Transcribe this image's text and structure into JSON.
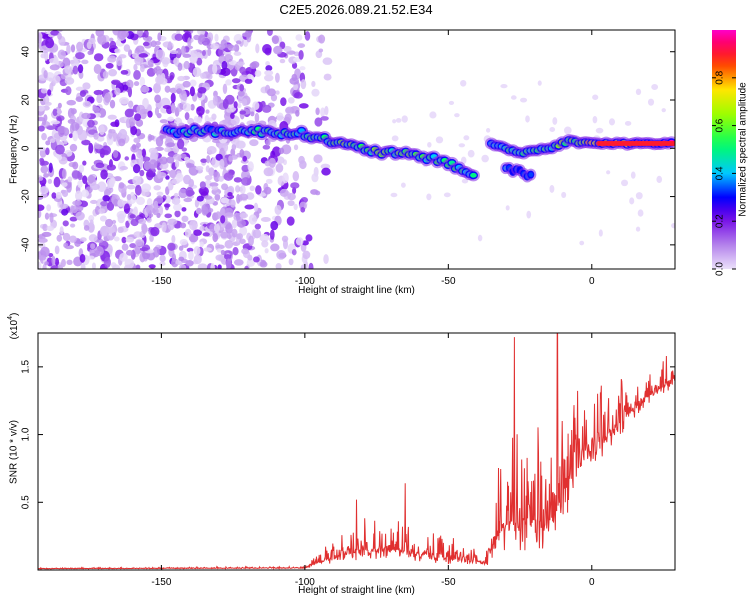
{
  "title": "C2E5.2026.089.21.52.E34",
  "chart_data": [
    {
      "type": "heatmap",
      "name": "spectrogram",
      "xlabel": "Height of straight line (km)",
      "ylabel": "Frequency (Hz)",
      "xlim": [
        -193,
        29
      ],
      "ylim": [
        -50,
        49
      ],
      "xticks": [
        -150,
        -100,
        -50,
        0
      ],
      "yticks": [
        -40,
        -20,
        0,
        20,
        40
      ],
      "colorbar": {
        "label": "Normalized spectral amplitude",
        "range": [
          0,
          1
        ],
        "ticks": [
          0.0,
          0.2,
          0.4,
          0.6,
          0.8
        ],
        "tick_labels": [
          "0.0",
          "0.2",
          "0.4",
          "0.6",
          "0.8"
        ]
      },
      "features": {
        "noise_region": {
          "x_range": [
            -193,
            -100
          ],
          "amplitude": [
            0.0,
            0.15
          ]
        },
        "main_track": [
          {
            "x": -148,
            "y": 7,
            "v": 0.45
          },
          {
            "x": -130,
            "y": 7,
            "v": 0.4
          },
          {
            "x": -115,
            "y": 7,
            "v": 0.5
          },
          {
            "x": -100,
            "y": 6,
            "v": 0.45
          },
          {
            "x": -85,
            "y": 1,
            "v": 0.55
          },
          {
            "x": -72,
            "y": -2,
            "v": 0.55
          },
          {
            "x": -60,
            "y": -3,
            "v": 0.5
          },
          {
            "x": -50,
            "y": -6,
            "v": 0.5
          },
          {
            "x": -40,
            "y": -12,
            "v": 0.45
          }
        ],
        "secondary_track": [
          {
            "x": -35,
            "y": 2,
            "v": 0.45
          },
          {
            "x": -25,
            "y": -2,
            "v": 0.5
          },
          {
            "x": -15,
            "y": 0,
            "v": 0.5
          },
          {
            "x": -8,
            "y": 3,
            "v": 0.6
          },
          {
            "x": 0,
            "y": 2,
            "v": 0.75
          },
          {
            "x": 10,
            "y": 2,
            "v": 0.85
          },
          {
            "x": 29,
            "y": 2,
            "v": 0.95
          }
        ],
        "branch_track": [
          {
            "x": -30,
            "y": -8,
            "v": 0.35
          },
          {
            "x": -20,
            "y": -12,
            "v": 0.3
          }
        ]
      }
    },
    {
      "type": "line",
      "name": "snr",
      "xlabel": "Height of straight line (km)",
      "ylabel": "SNR (10 * v/v)",
      "y_multiplier": "(x10",
      "y_multiplier_exp": "4",
      "y_multiplier_close": ")",
      "xlim": [
        -193,
        29
      ],
      "ylim": [
        0,
        17500
      ],
      "xticks": [
        -150,
        -100,
        -50,
        0
      ],
      "yticks": [
        5000,
        10000,
        15000
      ],
      "ytick_labels": [
        "0.5",
        "1.0",
        "1.5"
      ],
      "color": "#e03030",
      "envelope": [
        {
          "x": -193,
          "base": 100,
          "amp": 80
        },
        {
          "x": -100,
          "base": 150,
          "amp": 120
        },
        {
          "x": -95,
          "base": 600,
          "amp": 900
        },
        {
          "x": -80,
          "base": 1500,
          "amp": 2500
        },
        {
          "x": -70,
          "base": 1600,
          "amp": 2800
        },
        {
          "x": -60,
          "base": 1200,
          "amp": 2500
        },
        {
          "x": -45,
          "base": 800,
          "amp": 1500
        },
        {
          "x": -37,
          "base": 500,
          "amp": 800
        },
        {
          "x": -33,
          "base": 3000,
          "amp": 6000
        },
        {
          "x": -25,
          "base": 4000,
          "amp": 9000
        },
        {
          "x": -15,
          "base": 3500,
          "amp": 8000
        },
        {
          "x": -5,
          "base": 8000,
          "amp": 7000
        },
        {
          "x": 5,
          "base": 10000,
          "amp": 4000
        },
        {
          "x": 20,
          "base": 13000,
          "amp": 2500
        },
        {
          "x": 29,
          "base": 14000,
          "amp": 1500
        }
      ],
      "peaks": [
        {
          "x": -27,
          "y": 17200
        },
        {
          "x": -12,
          "y": 17500
        },
        {
          "x": -65,
          "y": 6400
        },
        {
          "x": -82,
          "y": 5200
        },
        {
          "x": 26,
          "y": 15800
        }
      ]
    }
  ]
}
